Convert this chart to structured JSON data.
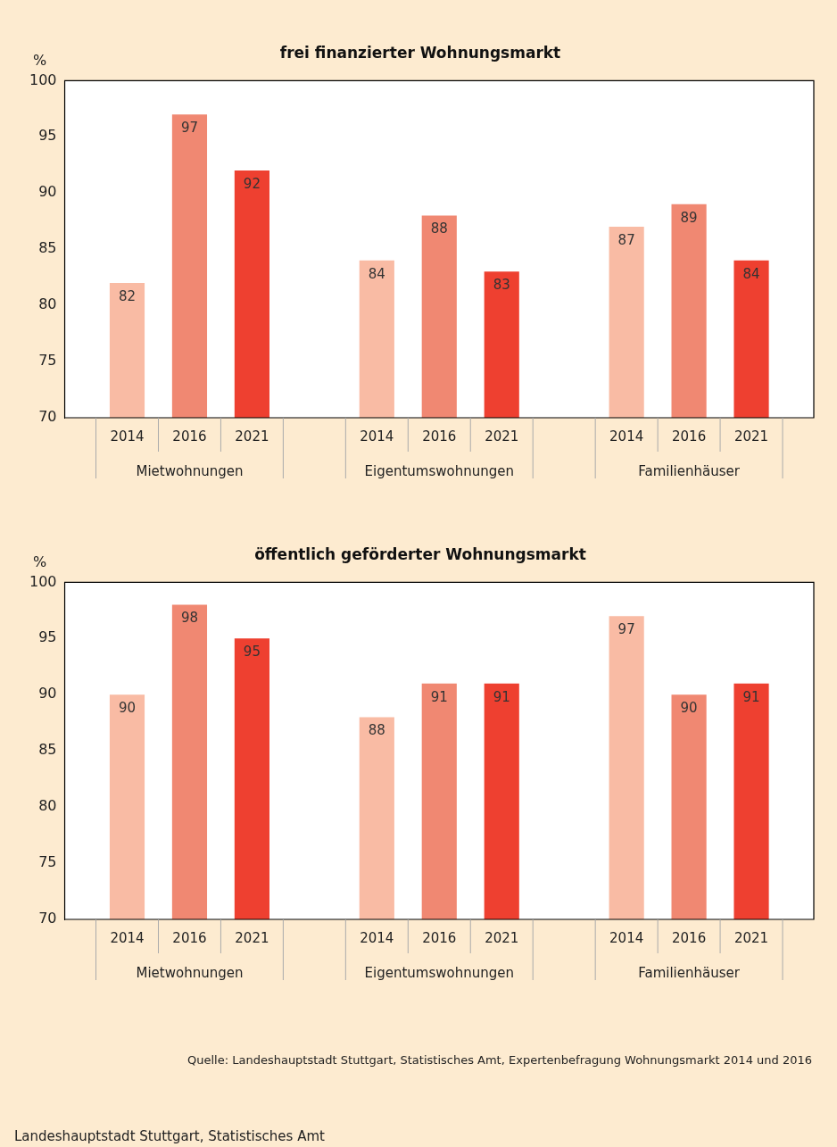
{
  "chart_data": [
    {
      "type": "bar",
      "title": "frei finanzierter Wohnungsmarkt",
      "ylabel": "%",
      "categories": [
        "Mietwohnungen",
        "Eigentumswohnungen",
        "Familienhäuser"
      ],
      "series": [
        {
          "name": "2014",
          "color": "#f9bba4",
          "values": [
            82,
            84,
            87
          ]
        },
        {
          "name": "2016",
          "color": "#f08872",
          "values": [
            97,
            88,
            89
          ]
        },
        {
          "name": "2021",
          "color": "#ee4030",
          "values": [
            92,
            83,
            84
          ]
        }
      ],
      "ylim": [
        70,
        100
      ],
      "yticks": [
        70,
        75,
        80,
        85,
        90,
        95,
        100
      ],
      "grid": false,
      "legend": false,
      "data_labels": true
    },
    {
      "type": "bar",
      "title": "öffentlich geförderter Wohnungsmarkt",
      "ylabel": "%",
      "categories": [
        "Mietwohnungen",
        "Eigentumswohnungen",
        "Familienhäuser"
      ],
      "series": [
        {
          "name": "2014",
          "color": "#f9bba4",
          "values": [
            90,
            88,
            97
          ]
        },
        {
          "name": "2016",
          "color": "#f08872",
          "values": [
            98,
            91,
            90
          ]
        },
        {
          "name": "2021",
          "color": "#ee4030",
          "values": [
            95,
            91,
            91
          ]
        }
      ],
      "ylim": [
        70,
        100
      ],
      "yticks": [
        70,
        75,
        80,
        85,
        90,
        95,
        100
      ],
      "grid": false,
      "legend": false,
      "data_labels": true,
      "annotations": [
        "Quelle: Landeshauptstadt Stuttgart, Statistisches Amt, Expertenbefragung Wohnungsmarkt 2014 und 2016",
        "Landeshauptstadt Stuttgart, Statistisches Amt"
      ]
    }
  ]
}
